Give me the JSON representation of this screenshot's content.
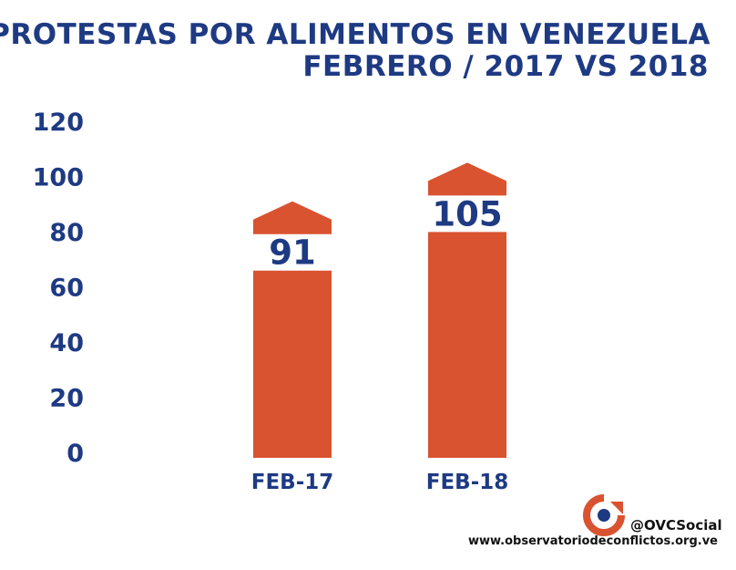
{
  "colors": {
    "primary": "#1e3a83",
    "bar": "#d95330",
    "text_dark": "#111111"
  },
  "chart_data": {
    "type": "bar",
    "title": "PROTESTAS POR ALIMENTOS EN VENEZUELA",
    "subtitle": "FEBRERO / 2017 VS 2018",
    "categories": [
      "FEB-17",
      "FEB-18"
    ],
    "values": [
      91,
      105
    ],
    "data_labels": [
      "91",
      "105"
    ],
    "ylim": [
      0,
      120
    ],
    "yticks": [
      0,
      20,
      40,
      60,
      80,
      100,
      120
    ],
    "grid": false,
    "legend": "none",
    "xlabel": "",
    "ylabel": ""
  },
  "footer": {
    "handle": "@OVCSocial",
    "website": "www.observatoriodeconflictos.org.ve",
    "logo_icon": "ovcs-logo-icon"
  }
}
